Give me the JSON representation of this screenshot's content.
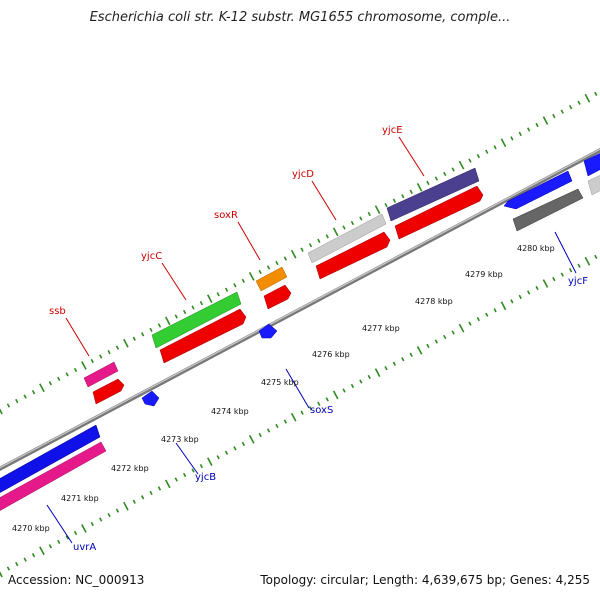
{
  "title": "Escherichia coli str. K-12 substr. MG1655 chromosome, comple...",
  "accession": "Accession: NC_000913",
  "summary": "Topology: circular; Length: 4,639,675 bp; Genes: 4,255",
  "colors": {
    "backbone": "#888888",
    "tick_ring": "#2f8a1f",
    "label_forward": "#cc0000",
    "label_reverse": "#0000bb"
  },
  "scale_labels": [
    "4270 kbp",
    "4271 kbp",
    "4272 kbp",
    "4273 kbp",
    "4274 kbp",
    "4275 kbp",
    "4276 kbp",
    "4277 kbp",
    "4278 kbp",
    "4279 kbp",
    "4280 kbp"
  ],
  "gene_labels_forward": [
    "ssb",
    "yjcC",
    "soxR",
    "yjcD",
    "yjcE"
  ],
  "gene_labels_reverse": [
    "uvrA",
    "yjcB",
    "soxS",
    "yjcF"
  ]
}
